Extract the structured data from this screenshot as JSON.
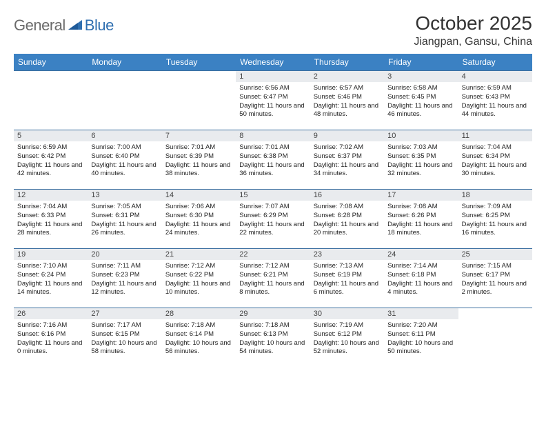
{
  "brand": {
    "part1": "General",
    "part2": "Blue"
  },
  "title": "October 2025",
  "location": "Jiangpan, Gansu, China",
  "colors": {
    "header_bg": "#3b81c3",
    "header_text": "#ffffff",
    "daynum_bg": "#e9ebee",
    "border": "#3b6fa0",
    "logo_gray": "#6a6a6a",
    "logo_blue": "#2f6fb0"
  },
  "day_headers": [
    "Sunday",
    "Monday",
    "Tuesday",
    "Wednesday",
    "Thursday",
    "Friday",
    "Saturday"
  ],
  "leading_blanks": 3,
  "days": [
    {
      "n": 1,
      "sunrise": "6:56 AM",
      "sunset": "6:47 PM",
      "dl_h": 11,
      "dl_m": 50
    },
    {
      "n": 2,
      "sunrise": "6:57 AM",
      "sunset": "6:46 PM",
      "dl_h": 11,
      "dl_m": 48
    },
    {
      "n": 3,
      "sunrise": "6:58 AM",
      "sunset": "6:45 PM",
      "dl_h": 11,
      "dl_m": 46
    },
    {
      "n": 4,
      "sunrise": "6:59 AM",
      "sunset": "6:43 PM",
      "dl_h": 11,
      "dl_m": 44
    },
    {
      "n": 5,
      "sunrise": "6:59 AM",
      "sunset": "6:42 PM",
      "dl_h": 11,
      "dl_m": 42
    },
    {
      "n": 6,
      "sunrise": "7:00 AM",
      "sunset": "6:40 PM",
      "dl_h": 11,
      "dl_m": 40
    },
    {
      "n": 7,
      "sunrise": "7:01 AM",
      "sunset": "6:39 PM",
      "dl_h": 11,
      "dl_m": 38
    },
    {
      "n": 8,
      "sunrise": "7:01 AM",
      "sunset": "6:38 PM",
      "dl_h": 11,
      "dl_m": 36
    },
    {
      "n": 9,
      "sunrise": "7:02 AM",
      "sunset": "6:37 PM",
      "dl_h": 11,
      "dl_m": 34
    },
    {
      "n": 10,
      "sunrise": "7:03 AM",
      "sunset": "6:35 PM",
      "dl_h": 11,
      "dl_m": 32
    },
    {
      "n": 11,
      "sunrise": "7:04 AM",
      "sunset": "6:34 PM",
      "dl_h": 11,
      "dl_m": 30
    },
    {
      "n": 12,
      "sunrise": "7:04 AM",
      "sunset": "6:33 PM",
      "dl_h": 11,
      "dl_m": 28
    },
    {
      "n": 13,
      "sunrise": "7:05 AM",
      "sunset": "6:31 PM",
      "dl_h": 11,
      "dl_m": 26
    },
    {
      "n": 14,
      "sunrise": "7:06 AM",
      "sunset": "6:30 PM",
      "dl_h": 11,
      "dl_m": 24
    },
    {
      "n": 15,
      "sunrise": "7:07 AM",
      "sunset": "6:29 PM",
      "dl_h": 11,
      "dl_m": 22
    },
    {
      "n": 16,
      "sunrise": "7:08 AM",
      "sunset": "6:28 PM",
      "dl_h": 11,
      "dl_m": 20
    },
    {
      "n": 17,
      "sunrise": "7:08 AM",
      "sunset": "6:26 PM",
      "dl_h": 11,
      "dl_m": 18
    },
    {
      "n": 18,
      "sunrise": "7:09 AM",
      "sunset": "6:25 PM",
      "dl_h": 11,
      "dl_m": 16
    },
    {
      "n": 19,
      "sunrise": "7:10 AM",
      "sunset": "6:24 PM",
      "dl_h": 11,
      "dl_m": 14
    },
    {
      "n": 20,
      "sunrise": "7:11 AM",
      "sunset": "6:23 PM",
      "dl_h": 11,
      "dl_m": 12
    },
    {
      "n": 21,
      "sunrise": "7:12 AM",
      "sunset": "6:22 PM",
      "dl_h": 11,
      "dl_m": 10
    },
    {
      "n": 22,
      "sunrise": "7:12 AM",
      "sunset": "6:21 PM",
      "dl_h": 11,
      "dl_m": 8
    },
    {
      "n": 23,
      "sunrise": "7:13 AM",
      "sunset": "6:19 PM",
      "dl_h": 11,
      "dl_m": 6
    },
    {
      "n": 24,
      "sunrise": "7:14 AM",
      "sunset": "6:18 PM",
      "dl_h": 11,
      "dl_m": 4
    },
    {
      "n": 25,
      "sunrise": "7:15 AM",
      "sunset": "6:17 PM",
      "dl_h": 11,
      "dl_m": 2
    },
    {
      "n": 26,
      "sunrise": "7:16 AM",
      "sunset": "6:16 PM",
      "dl_h": 11,
      "dl_m": 0
    },
    {
      "n": 27,
      "sunrise": "7:17 AM",
      "sunset": "6:15 PM",
      "dl_h": 10,
      "dl_m": 58
    },
    {
      "n": 28,
      "sunrise": "7:18 AM",
      "sunset": "6:14 PM",
      "dl_h": 10,
      "dl_m": 56
    },
    {
      "n": 29,
      "sunrise": "7:18 AM",
      "sunset": "6:13 PM",
      "dl_h": 10,
      "dl_m": 54
    },
    {
      "n": 30,
      "sunrise": "7:19 AM",
      "sunset": "6:12 PM",
      "dl_h": 10,
      "dl_m": 52
    },
    {
      "n": 31,
      "sunrise": "7:20 AM",
      "sunset": "6:11 PM",
      "dl_h": 10,
      "dl_m": 50
    }
  ],
  "labels": {
    "sunrise": "Sunrise:",
    "sunset": "Sunset:",
    "daylight": "Daylight:",
    "hours_word": "hours",
    "and_word": "and",
    "minutes_word": "minutes."
  }
}
